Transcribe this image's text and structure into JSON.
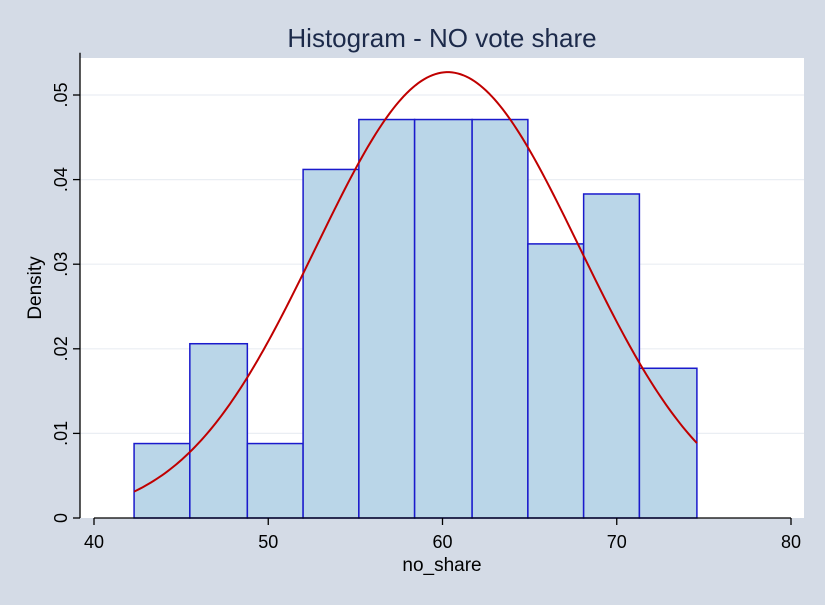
{
  "chart_data": {
    "type": "bar",
    "title": "Histogram - NO vote share",
    "xlabel": "no_share",
    "ylabel": "Density",
    "xlim": [
      40,
      80
    ],
    "ylim": [
      0,
      0.055
    ],
    "x_ticks": [
      40,
      50,
      60,
      70,
      80
    ],
    "x_tick_labels": [
      "40",
      "50",
      "60",
      "70",
      "80"
    ],
    "y_ticks": [
      0,
      0.01,
      0.02,
      0.03,
      0.04,
      0.05
    ],
    "y_tick_labels": [
      "0",
      ".01",
      ".02",
      ".03",
      ".04",
      ".05"
    ],
    "grid": true,
    "bins": [
      {
        "x0": 42.3,
        "x1": 45.5,
        "density": 0.0088
      },
      {
        "x0": 45.5,
        "x1": 48.8,
        "density": 0.0206
      },
      {
        "x0": 48.8,
        "x1": 52.0,
        "density": 0.0088
      },
      {
        "x0": 52.0,
        "x1": 55.2,
        "density": 0.0412
      },
      {
        "x0": 55.2,
        "x1": 58.4,
        "density": 0.0471
      },
      {
        "x0": 58.4,
        "x1": 61.7,
        "density": 0.0471
      },
      {
        "x0": 61.7,
        "x1": 64.9,
        "density": 0.0471
      },
      {
        "x0": 64.9,
        "x1": 68.1,
        "density": 0.0324
      },
      {
        "x0": 68.1,
        "x1": 71.3,
        "density": 0.0383
      },
      {
        "x0": 71.3,
        "x1": 74.6,
        "density": 0.0177
      }
    ],
    "normal_curve": {
      "mean": 60.3,
      "sd": 7.57,
      "x_range": [
        42.3,
        74.6
      ]
    },
    "colors": {
      "background": "#d4dbe6",
      "plot_background": "#ffffff",
      "bar_fill": "#bad6e8",
      "bar_stroke": "#1a1acc",
      "curve": "#c00000",
      "title": "#1c2a4a",
      "grid": "#eaeef3"
    }
  }
}
